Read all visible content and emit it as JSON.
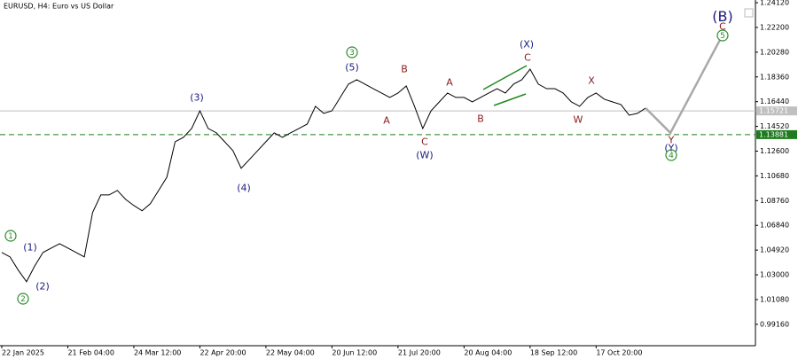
{
  "chart_data": {
    "type": "line",
    "title": "EURUSD, H4:  Euro vs US Dollar",
    "color": "#000000",
    "categories": [
      "22 Jan 2025",
      null,
      null,
      null,
      null,
      null,
      null,
      null,
      "21 Feb 04:00",
      null,
      null,
      null,
      null,
      null,
      null,
      null,
      "24 Mar 12:00",
      null,
      null,
      null,
      null,
      null,
      null,
      null,
      "22 Apr 20:00",
      null,
      null,
      null,
      null,
      null,
      null,
      null,
      "22 May 04:00",
      null,
      null,
      null,
      null,
      null,
      null,
      null,
      "20 Jun 12:00",
      null,
      null,
      null,
      null,
      null,
      null,
      null,
      "21 Jul 20:00",
      null,
      null,
      null,
      null,
      null,
      null,
      null,
      "20 Aug 04:00",
      null,
      null,
      null,
      null,
      null,
      null,
      null,
      "18 Sep 12:00",
      null,
      null,
      null,
      null,
      null,
      null,
      null,
      "17 Oct 20:00",
      null,
      null,
      null,
      null,
      null,
      null,
      null,
      null,
      null,
      null,
      null,
      null,
      null,
      null,
      null,
      null,
      null,
      null,
      null
    ],
    "values": [
      1.0474,
      1.0439,
      1.0336,
      1.0247,
      1.037,
      1.0474,
      1.0508,
      1.0542,
      1.0508,
      1.0474,
      1.0439,
      1.0783,
      1.092,
      1.092,
      1.0955,
      1.0886,
      1.0838,
      1.0797,
      1.0852,
      1.0955,
      1.1058,
      1.1333,
      1.1367,
      1.1436,
      1.1573,
      1.1436,
      1.1402,
      1.1333,
      1.1264,
      1.1127,
      1.1195,
      1.1264,
      1.1333,
      1.1402,
      1.1367,
      1.1402,
      1.1436,
      1.147,
      1.1608,
      1.1553,
      1.1573,
      1.1677,
      1.178,
      1.1814,
      1.178,
      1.1745,
      1.1711,
      1.1677,
      1.1711,
      1.1766,
      1.1608,
      1.1436,
      1.1573,
      1.1642,
      1.1711,
      1.1677,
      1.1677,
      1.1642,
      1.1677,
      1.1711,
      1.1745,
      1.1711,
      1.178,
      1.1814,
      1.1896,
      1.178,
      1.1745,
      1.1745,
      1.1711,
      1.1642,
      1.1608,
      1.1677,
      1.1711,
      1.1663,
      1.1642,
      1.1622,
      1.1539,
      1.1553,
      1.1594,
      null,
      null,
      null,
      null,
      null,
      null,
      null,
      null,
      null,
      null,
      null,
      null,
      null
    ],
    "projection": {
      "color": "#a9a9a9",
      "values": [
        null,
        null,
        null,
        null,
        null,
        null,
        null,
        null,
        null,
        null,
        null,
        null,
        null,
        null,
        null,
        null,
        null,
        null,
        null,
        null,
        null,
        null,
        null,
        null,
        null,
        null,
        null,
        null,
        null,
        null,
        null,
        null,
        null,
        null,
        null,
        null,
        null,
        null,
        null,
        null,
        null,
        null,
        null,
        null,
        null,
        null,
        null,
        null,
        null,
        null,
        null,
        null,
        null,
        null,
        null,
        null,
        null,
        null,
        null,
        null,
        null,
        null,
        null,
        null,
        null,
        null,
        null,
        null,
        null,
        null,
        null,
        null,
        null,
        null,
        null,
        null,
        null,
        null,
        1.1594,
        1.153,
        1.1466,
        1.1402,
        1.1522,
        1.1642,
        1.1762,
        1.1883,
        1.2003,
        1.2123,
        null,
        null,
        null,
        null
      ]
    },
    "ylim": [
      0.975,
      1.2433
    ],
    "yticks": [
      {
        "value": 1.2412,
        "label": "1.24120"
      },
      {
        "value": 1.222,
        "label": "1.22200"
      },
      {
        "value": 1.2028,
        "label": "1.20280"
      },
      {
        "value": 1.1836,
        "label": "1.18360"
      },
      {
        "value": 1.1644,
        "label": "1.16440"
      },
      {
        "value": 1.1452,
        "label": "1.14520"
      },
      {
        "value": 1.126,
        "label": "1.12600"
      },
      {
        "value": 1.1068,
        "label": "1.10680"
      },
      {
        "value": 1.0876,
        "label": "1.08760"
      },
      {
        "value": 1.0684,
        "label": "1.06840"
      },
      {
        "value": 1.0492,
        "label": "1.04920"
      },
      {
        "value": 1.03,
        "label": "1.03000"
      },
      {
        "value": 1.0108,
        "label": "1.01080"
      },
      {
        "value": 0.9916,
        "label": "0.99160"
      }
    ],
    "price_lines": [
      {
        "value": 1.15721,
        "color": "#c0c0c0",
        "dashed": false
      },
      {
        "value": 1.13881,
        "color": "#1e7b1e",
        "dashed": true
      }
    ],
    "annotations": [
      {
        "text": "1",
        "color": "#2e8b2e",
        "circled": true
      },
      {
        "text": "(1)",
        "color": "#1a1a80",
        "circled": false
      },
      {
        "text": "2",
        "color": "#2e8b2e",
        "circled": true
      },
      {
        "text": "(2)",
        "color": "#1a1a80",
        "circled": false
      },
      {
        "text": "(3)",
        "color": "#1a1a80",
        "circled": false
      },
      {
        "text": "(4)",
        "color": "#1a1a80",
        "circled": false
      },
      {
        "text": "3",
        "color": "#2e8b2e",
        "circled": true
      },
      {
        "text": "(5)",
        "color": "#1a1a80",
        "circled": false
      },
      {
        "text": "A",
        "color": "#8b1a1a",
        "circled": false
      },
      {
        "text": "B",
        "color": "#8b1a1a",
        "circled": false
      },
      {
        "text": "C",
        "color": "#8b1a1a",
        "circled": false
      },
      {
        "text": "(W)",
        "color": "#1a1a80",
        "circled": false
      },
      {
        "text": "A",
        "color": "#8b1a1a",
        "circled": false
      },
      {
        "text": "B",
        "color": "#8b1a1a",
        "circled": false
      },
      {
        "text": "(X)",
        "color": "#1a1a80",
        "circled": false
      },
      {
        "text": "C",
        "color": "#8b1a1a",
        "circled": false
      },
      {
        "text": "X",
        "color": "#8b1a1a",
        "circled": false
      },
      {
        "text": "W",
        "color": "#8b1a1a",
        "circled": false
      },
      {
        "text": "Y",
        "color": "#8b1a1a",
        "circled": false
      },
      {
        "text": "(Y)",
        "color": "#1a1a80",
        "circled": false
      },
      {
        "text": "4",
        "color": "#2e8b2e",
        "circled": true
      },
      {
        "text": "(B)",
        "color": "#1a1a80",
        "circled": false
      },
      {
        "text": "C",
        "color": "#8b1a1a",
        "circled": false
      },
      {
        "text": "5",
        "color": "#2e8b2e",
        "circled": true
      }
    ]
  }
}
